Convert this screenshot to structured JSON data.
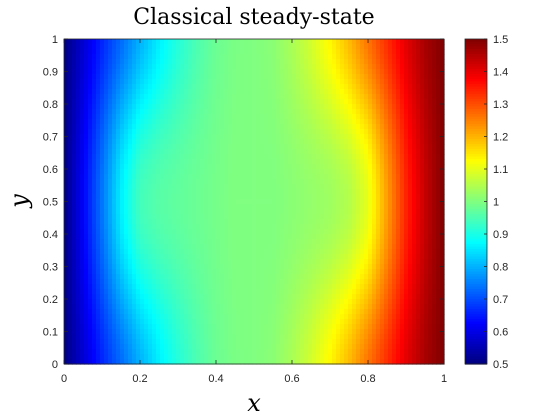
{
  "chart_data": {
    "type": "heatmap",
    "title": "Classical steady-state",
    "xlabel": "x",
    "ylabel": "y",
    "xlim": [
      0,
      1
    ],
    "ylim": [
      0,
      1
    ],
    "x_ticks": [
      "0",
      "0.2",
      "0.4",
      "0.6",
      "0.8",
      "1"
    ],
    "y_ticks": [
      "0",
      "0.1",
      "0.2",
      "0.3",
      "0.4",
      "0.5",
      "0.6",
      "0.7",
      "0.8",
      "0.9",
      "1"
    ],
    "colorbar": {
      "colormap": "jet",
      "clim": [
        0.5,
        1.5
      ],
      "ticks": [
        "0.5",
        "0.6",
        "0.7",
        "0.8",
        "0.9",
        "1",
        "1.1",
        "1.2",
        "1.3",
        "1.4",
        "1.5"
      ]
    },
    "field_description": "value rises from ~0.5 at x=0 to ~1.5 at x=1; plateau near 1.0 in the middle that bulges outward around y=0.5",
    "profile_at_y_0_5": {
      "x": [
        0,
        0.05,
        0.1,
        0.15,
        0.2,
        0.25,
        0.3,
        0.35,
        0.4,
        0.45,
        0.5,
        0.55,
        0.6,
        0.65,
        0.7,
        0.75,
        0.8,
        0.85,
        0.9,
        0.95,
        1
      ],
      "value": [
        0.5,
        0.62,
        0.74,
        0.86,
        0.94,
        0.96,
        0.97,
        0.98,
        0.99,
        1.0,
        1.0,
        1.0,
        1.01,
        1.02,
        1.03,
        1.05,
        1.1,
        1.22,
        1.34,
        1.43,
        1.5
      ]
    },
    "profile_at_y_0_and_1": {
      "x": [
        0,
        0.05,
        0.1,
        0.15,
        0.2,
        0.25,
        0.3,
        0.35,
        0.4,
        0.45,
        0.5,
        0.55,
        0.6,
        0.65,
        0.7,
        0.75,
        0.8,
        0.85,
        0.9,
        0.95,
        1
      ],
      "value": [
        0.5,
        0.58,
        0.66,
        0.73,
        0.8,
        0.86,
        0.91,
        0.95,
        0.98,
        0.995,
        1.0,
        1.01,
        1.04,
        1.08,
        1.13,
        1.19,
        1.26,
        1.33,
        1.4,
        1.46,
        1.5
      ]
    }
  }
}
